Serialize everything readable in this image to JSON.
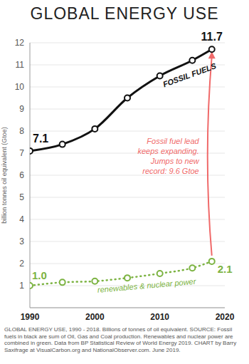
{
  "chart_data": {
    "type": "line",
    "title": "GLOBAL ENERGY USE",
    "y_label": "billion tonnes oil equivalent (Gtoe)",
    "x": [
      1990,
      1995,
      2000,
      2005,
      2010,
      2015,
      2018
    ],
    "series": [
      {
        "name": "FOSSIL FUELS",
        "color": "#111111",
        "marker": "circle",
        "line_style": "solid",
        "values": [
          7.1,
          7.4,
          8.1,
          9.5,
          10.5,
          11.2,
          11.7
        ],
        "value_labels": [
          "7.1",
          null,
          null,
          null,
          null,
          null,
          "11.7"
        ]
      },
      {
        "name": "renewables & nuclear power",
        "color": "#7cb342",
        "marker": "circle",
        "line_style": "dotted",
        "values": [
          1.0,
          1.15,
          1.2,
          1.35,
          1.55,
          1.8,
          2.1
        ],
        "value_labels": [
          "1.0",
          null,
          null,
          null,
          null,
          null,
          "2.1"
        ]
      }
    ],
    "xlim": [
      1990,
      2020
    ],
    "xticks": [
      1990,
      2000,
      2010,
      2020
    ],
    "ylim": [
      0,
      12
    ],
    "yticks": [
      1,
      2,
      3,
      4,
      5,
      6,
      7,
      8,
      9,
      10,
      11,
      12
    ],
    "grid": true,
    "data_labels": true,
    "annotation": {
      "text": [
        "Fossil fuel lead",
        "keeps expanding.",
        "Jumps to new",
        "record: 9.6 Gtoe"
      ],
      "color": "#f06a6a"
    },
    "source": "GLOBAL ENERGY USE, 1990 - 2018. Billions of tonnes of oil equivalent. SOURCE: Fossil fuels in black are sum of Oil, Gas and Coal production. Renewables and nuclear power are combined in green. Data from BP Statistical Review of World Energy 2019. CHART by Barry Saxifrage at VisualCarbon.org and NationalObserver.com. June 2019."
  }
}
